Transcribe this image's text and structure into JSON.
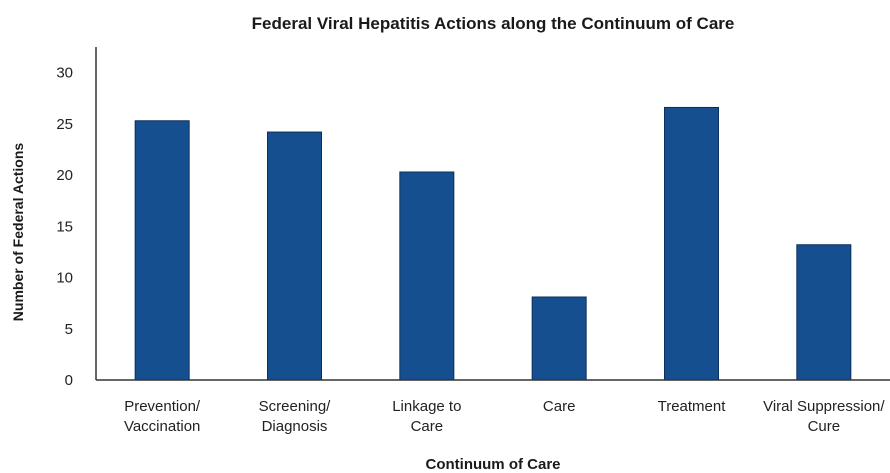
{
  "chart_data": {
    "type": "bar",
    "title": "Federal Viral Hepatitis Actions along the Continuum of Care",
    "xlabel": "Continuum of Care",
    "ylabel": "Number of Federal Actions",
    "categories": [
      [
        "Prevention/",
        "Vaccination"
      ],
      [
        "Screening/",
        "Diagnosis"
      ],
      [
        "Linkage to",
        "Care"
      ],
      [
        "Care"
      ],
      [
        "Treatment"
      ],
      [
        "Viral Suppression/",
        "Cure"
      ]
    ],
    "values": [
      25.3,
      24.2,
      20.3,
      8.1,
      26.6,
      13.2
    ],
    "yticks": [
      0,
      5,
      10,
      15,
      20,
      25,
      30
    ],
    "ylim": [
      0,
      32.5
    ],
    "grid": false,
    "bar_color": "#164f8f"
  }
}
